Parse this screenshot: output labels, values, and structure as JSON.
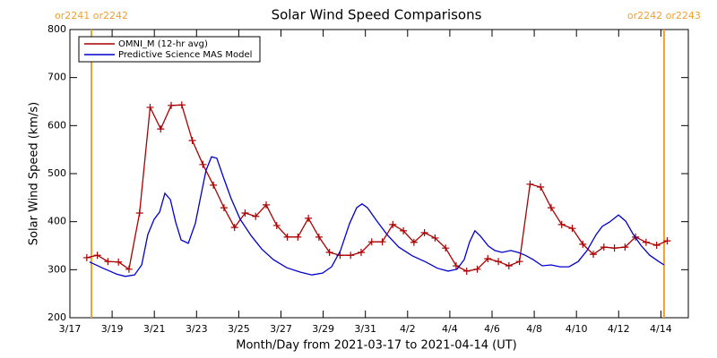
{
  "chart_data": {
    "type": "line",
    "title": "Solar Wind Speed Comparisons",
    "ylabel": "Solar Wind Speed (km/s)",
    "xlabel": "Month/Day from 2021-03-17 to 2021-04-14 (UT)",
    "xlim": [
      0,
      29.3
    ],
    "ylim": [
      200,
      800
    ],
    "yticks": [
      200,
      300,
      400,
      500,
      600,
      700,
      800
    ],
    "xticks": [
      {
        "value": 0,
        "label": "3/17"
      },
      {
        "value": 2,
        "label": "3/19"
      },
      {
        "value": 4,
        "label": "3/21"
      },
      {
        "value": 6,
        "label": "3/23"
      },
      {
        "value": 8,
        "label": "3/25"
      },
      {
        "value": 10,
        "label": "3/27"
      },
      {
        "value": 12,
        "label": "3/29"
      },
      {
        "value": 14,
        "label": "3/31"
      },
      {
        "value": 16,
        "label": "4/2"
      },
      {
        "value": 18,
        "label": "4/4"
      },
      {
        "value": 20,
        "label": "4/6"
      },
      {
        "value": 22,
        "label": "4/8"
      },
      {
        "value": 24,
        "label": "4/10"
      },
      {
        "value": 26,
        "label": "4/12"
      },
      {
        "value": 28,
        "label": "4/14"
      }
    ],
    "legend": "upper left",
    "boundaries": [
      {
        "x": 1.02,
        "label": "or2241 or2242",
        "color": "#f0a030"
      },
      {
        "x": 28.15,
        "label": "or2242 or2243",
        "color": "#f0a030"
      }
    ],
    "series": [
      {
        "name": "OMNI_M (12-hr avg)",
        "color": "#aa0000",
        "marker": "+",
        "x": [
          0.8,
          1.3,
          1.8,
          2.3,
          2.8,
          3.3,
          3.8,
          4.3,
          4.8,
          5.3,
          5.8,
          6.3,
          6.8,
          7.3,
          7.8,
          8.3,
          8.8,
          9.3,
          9.8,
          10.3,
          10.8,
          11.3,
          11.8,
          12.3,
          12.8,
          13.3,
          13.8,
          14.3,
          14.8,
          15.3,
          15.8,
          16.3,
          16.8,
          17.3,
          17.8,
          18.3,
          18.8,
          19.3,
          19.8,
          20.3,
          20.8,
          21.3,
          21.8,
          22.3,
          22.8,
          23.3,
          23.8,
          24.3,
          24.8,
          25.3,
          25.8,
          26.3,
          26.8,
          27.3,
          27.8,
          28.3
        ],
        "values": [
          325,
          330,
          317,
          316,
          301,
          418,
          638,
          593,
          642,
          643,
          569,
          519,
          476,
          429,
          388,
          418,
          411,
          435,
          392,
          368,
          368,
          407,
          368,
          336,
          330,
          330,
          336,
          358,
          358,
          394,
          381,
          357,
          377,
          366,
          345,
          308,
          297,
          301,
          323,
          317,
          308,
          317,
          478,
          472,
          429,
          394,
          386,
          353,
          332,
          347,
          345,
          347,
          368,
          357,
          351,
          360
        ]
      },
      {
        "name": "Predictive Science MAS Model",
        "color": "#0000cc",
        "x": [
          0.93,
          1.57,
          2.21,
          2.63,
          3.06,
          3.4,
          3.69,
          3.99,
          4.25,
          4.5,
          4.76,
          5.01,
          5.27,
          5.61,
          5.94,
          6.24,
          6.45,
          6.71,
          6.96,
          7.3,
          7.64,
          8.07,
          8.58,
          9.09,
          9.64,
          10.28,
          10.91,
          11.46,
          11.97,
          12.4,
          12.82,
          13.25,
          13.59,
          13.84,
          14.1,
          14.52,
          15.03,
          15.58,
          16.22,
          16.86,
          17.41,
          17.92,
          18.34,
          18.68,
          18.94,
          19.19,
          19.45,
          19.83,
          20.13,
          20.47,
          20.89,
          21.23,
          21.57,
          21.95,
          22.38,
          22.8,
          23.23,
          23.65,
          24.08,
          24.5,
          24.93,
          25.22,
          25.56,
          25.99,
          26.33,
          26.67,
          27.05,
          27.47,
          27.9,
          28.15
        ],
        "values": [
          316,
          303,
          291,
          286,
          289,
          310,
          373,
          405,
          420,
          459,
          446,
          399,
          362,
          355,
          396,
          461,
          507,
          535,
          532,
          489,
          448,
          405,
          371,
          343,
          321,
          304,
          295,
          289,
          293,
          306,
          340,
          396,
          429,
          437,
          429,
          403,
          373,
          347,
          329,
          316,
          303,
          297,
          301,
          321,
          358,
          381,
          370,
          349,
          340,
          336,
          340,
          336,
          330,
          321,
          308,
          310,
          306,
          306,
          317,
          340,
          373,
          390,
          399,
          414,
          401,
          375,
          351,
          330,
          317,
          310
        ]
      }
    ]
  }
}
